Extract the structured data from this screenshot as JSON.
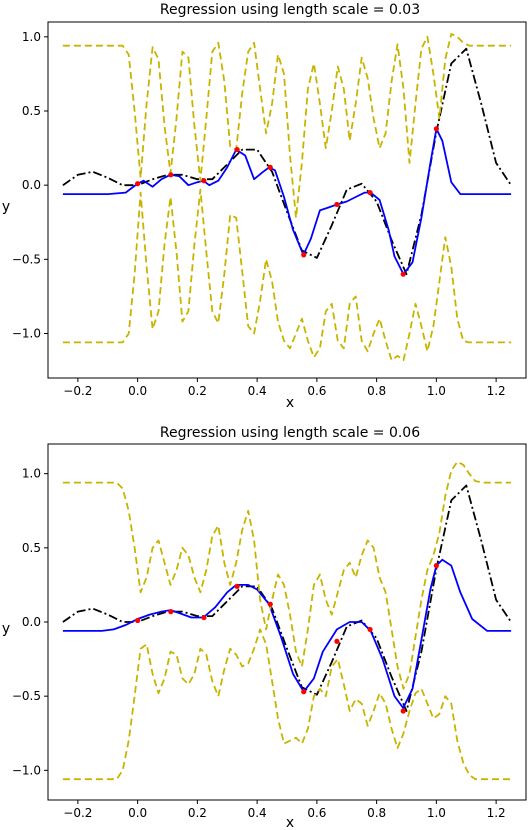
{
  "chart_data": [
    {
      "type": "line",
      "title": "Regression using length scale = 0.03",
      "xlabel": "x",
      "ylabel": "y",
      "xlim": [
        -0.3,
        1.3
      ],
      "ylim": [
        -1.3,
        1.1
      ],
      "xticks": [
        -0.2,
        0.0,
        0.2,
        0.4,
        0.6,
        0.8,
        1.0,
        1.2
      ],
      "xtick_labels": [
        "−0.2",
        "0.0",
        "0.2",
        "0.4",
        "0.6",
        "0.8",
        "1.0",
        "1.2"
      ],
      "yticks": [
        1.0,
        0.5,
        0.0,
        -0.5,
        -1.0
      ],
      "ytick_labels": [
        "1.0",
        "0.5",
        "0.0",
        "−0.5",
        "−1.0"
      ],
      "series": [
        {
          "style": "dashdot",
          "color": "#000000",
          "x": [
            -0.25,
            -0.2,
            -0.15,
            -0.1,
            -0.05,
            0.0,
            0.05,
            0.1,
            0.15,
            0.2,
            0.25,
            0.3,
            0.35,
            0.4,
            0.45,
            0.5,
            0.55,
            0.6,
            0.65,
            0.7,
            0.75,
            0.8,
            0.85,
            0.9,
            0.95,
            1.0,
            1.05,
            1.1,
            1.15,
            1.2,
            1.25
          ],
          "y": [
            0.0,
            0.07,
            0.09,
            0.05,
            0.0,
            0.0,
            0.04,
            0.07,
            0.07,
            0.04,
            0.04,
            0.14,
            0.24,
            0.24,
            0.09,
            -0.18,
            -0.44,
            -0.49,
            -0.27,
            -0.03,
            0.01,
            -0.11,
            -0.37,
            -0.6,
            -0.2,
            0.36,
            0.82,
            0.92,
            0.55,
            0.15,
            0.0
          ]
        },
        {
          "style": "solid",
          "color": "#0000ff",
          "x": [
            -0.25,
            -0.1,
            -0.04,
            -0.02,
            0.0,
            0.02,
            0.05,
            0.08,
            0.11,
            0.14,
            0.17,
            0.2,
            0.22,
            0.24,
            0.27,
            0.3,
            0.33,
            0.36,
            0.39,
            0.42,
            0.44,
            0.46,
            0.49,
            0.52,
            0.555,
            0.58,
            0.61,
            0.64,
            0.667,
            0.7,
            0.73,
            0.76,
            0.78,
            0.81,
            0.84,
            0.86,
            0.89,
            0.92,
            0.95,
            0.98,
            1.0,
            1.02,
            1.05,
            1.08,
            1.12,
            1.18,
            1.25
          ],
          "y": [
            -0.06,
            -0.06,
            -0.05,
            -0.02,
            0.01,
            0.03,
            -0.01,
            0.04,
            0.07,
            0.06,
            0.0,
            0.02,
            0.03,
            0.0,
            0.03,
            0.12,
            0.24,
            0.2,
            0.04,
            0.09,
            0.12,
            0.1,
            -0.08,
            -0.3,
            -0.47,
            -0.36,
            -0.17,
            -0.15,
            -0.13,
            -0.11,
            -0.08,
            -0.05,
            -0.05,
            -0.1,
            -0.3,
            -0.48,
            -0.6,
            -0.52,
            -0.22,
            0.15,
            0.38,
            0.3,
            0.02,
            -0.06,
            -0.06,
            -0.06,
            -0.06
          ]
        },
        {
          "style": "dashed",
          "color": "#c8b400",
          "x": [
            -0.25,
            -0.05,
            -0.03,
            -0.01,
            0.01,
            0.03,
            0.05,
            0.07,
            0.09,
            0.11,
            0.13,
            0.15,
            0.17,
            0.19,
            0.21,
            0.23,
            0.25,
            0.27,
            0.29,
            0.31,
            0.33,
            0.35,
            0.37,
            0.39,
            0.41,
            0.43,
            0.45,
            0.47,
            0.49,
            0.51,
            0.53,
            0.55,
            0.57,
            0.59,
            0.61,
            0.63,
            0.65,
            0.67,
            0.69,
            0.71,
            0.73,
            0.75,
            0.77,
            0.79,
            0.81,
            0.83,
            0.85,
            0.87,
            0.89,
            0.91,
            0.93,
            0.95,
            0.97,
            0.99,
            1.01,
            1.03,
            1.05,
            1.07,
            1.09,
            1.11,
            1.13,
            1.25
          ],
          "y": [
            0.94,
            0.94,
            0.88,
            0.5,
            0.05,
            0.55,
            0.93,
            0.85,
            0.4,
            0.08,
            0.45,
            0.9,
            0.86,
            0.4,
            0.03,
            0.45,
            0.9,
            0.96,
            0.7,
            0.26,
            0.24,
            0.62,
            0.9,
            0.96,
            0.65,
            0.35,
            0.55,
            0.88,
            0.75,
            0.2,
            -0.22,
            0.15,
            0.65,
            0.82,
            0.55,
            0.25,
            0.5,
            0.8,
            0.65,
            0.3,
            0.55,
            0.86,
            0.72,
            0.45,
            0.25,
            0.35,
            0.7,
            0.95,
            0.65,
            0.15,
            0.55,
            0.92,
            1.0,
            0.75,
            0.45,
            0.85,
            1.02,
            1.0,
            0.96,
            0.94,
            0.94,
            0.94
          ]
        },
        {
          "style": "dashed",
          "color": "#c8b400",
          "x": [
            -0.25,
            -0.05,
            -0.03,
            -0.01,
            0.01,
            0.03,
            0.05,
            0.07,
            0.09,
            0.11,
            0.13,
            0.15,
            0.17,
            0.19,
            0.21,
            0.23,
            0.25,
            0.27,
            0.29,
            0.31,
            0.33,
            0.35,
            0.37,
            0.39,
            0.41,
            0.43,
            0.45,
            0.47,
            0.49,
            0.51,
            0.53,
            0.55,
            0.57,
            0.59,
            0.61,
            0.63,
            0.65,
            0.67,
            0.69,
            0.71,
            0.73,
            0.75,
            0.77,
            0.79,
            0.81,
            0.83,
            0.85,
            0.87,
            0.89,
            0.91,
            0.93,
            0.95,
            0.97,
            0.99,
            1.01,
            1.03,
            1.05,
            1.07,
            1.09,
            1.11,
            1.13,
            1.25
          ],
          "y": [
            -1.06,
            -1.06,
            -1.0,
            -0.6,
            -0.05,
            -0.55,
            -0.97,
            -0.85,
            -0.4,
            -0.08,
            -0.45,
            -0.92,
            -0.85,
            -0.4,
            -0.03,
            -0.45,
            -0.85,
            -0.93,
            -0.6,
            -0.2,
            -0.22,
            -0.58,
            -0.95,
            -1.0,
            -0.78,
            -0.5,
            -0.65,
            -0.92,
            -1.05,
            -1.1,
            -1.0,
            -0.9,
            -1.05,
            -1.16,
            -1.1,
            -0.85,
            -0.8,
            -1.05,
            -1.1,
            -0.8,
            -0.75,
            -1.05,
            -1.12,
            -1.0,
            -0.9,
            -1.05,
            -1.18,
            -1.15,
            -1.18,
            -1.0,
            -0.8,
            -0.95,
            -1.12,
            -0.95,
            -0.65,
            -0.35,
            -0.55,
            -0.9,
            -1.05,
            -1.06,
            -1.06,
            -1.06
          ]
        }
      ],
      "points": {
        "color": "#ff0000",
        "x": [
          0.0,
          0.111,
          0.222,
          0.333,
          0.444,
          0.556,
          0.667,
          0.778,
          0.889,
          1.0
        ],
        "y": [
          0.01,
          0.07,
          0.03,
          0.24,
          0.12,
          -0.47,
          -0.13,
          -0.05,
          -0.6,
          0.38
        ]
      }
    },
    {
      "type": "line",
      "title": "Regression using length scale = 0.06",
      "xlabel": "x",
      "ylabel": "y",
      "xlim": [
        -0.3,
        1.3
      ],
      "ylim": [
        -1.2,
        1.2
      ],
      "xticks": [
        -0.2,
        0.0,
        0.2,
        0.4,
        0.6,
        0.8,
        1.0,
        1.2
      ],
      "xtick_labels": [
        "−0.2",
        "0.0",
        "0.2",
        "0.4",
        "0.6",
        "0.8",
        "1.0",
        "1.2"
      ],
      "yticks": [
        1.0,
        0.5,
        0.0,
        -0.5,
        -1.0
      ],
      "ytick_labels": [
        "1.0",
        "0.5",
        "0.0",
        "−0.5",
        "−1.0"
      ],
      "series": [
        {
          "style": "dashdot",
          "color": "#000000",
          "x": [
            -0.25,
            -0.2,
            -0.15,
            -0.1,
            -0.05,
            0.0,
            0.05,
            0.1,
            0.15,
            0.2,
            0.25,
            0.3,
            0.35,
            0.4,
            0.45,
            0.5,
            0.55,
            0.6,
            0.65,
            0.7,
            0.75,
            0.8,
            0.85,
            0.9,
            0.95,
            1.0,
            1.05,
            1.1,
            1.15,
            1.2,
            1.25
          ],
          "y": [
            0.0,
            0.07,
            0.09,
            0.05,
            0.0,
            0.0,
            0.04,
            0.07,
            0.07,
            0.04,
            0.04,
            0.14,
            0.24,
            0.24,
            0.09,
            -0.18,
            -0.44,
            -0.49,
            -0.27,
            -0.03,
            0.01,
            -0.11,
            -0.37,
            -0.6,
            -0.2,
            0.36,
            0.82,
            0.92,
            0.55,
            0.15,
            0.0
          ]
        },
        {
          "style": "solid",
          "color": "#0000ff",
          "x": [
            -0.25,
            -0.12,
            -0.08,
            -0.04,
            0.0,
            0.04,
            0.08,
            0.11,
            0.14,
            0.18,
            0.22,
            0.26,
            0.3,
            0.33,
            0.37,
            0.4,
            0.44,
            0.48,
            0.52,
            0.556,
            0.59,
            0.62,
            0.667,
            0.71,
            0.75,
            0.78,
            0.82,
            0.86,
            0.889,
            0.92,
            0.95,
            0.98,
            1.0,
            1.02,
            1.05,
            1.08,
            1.12,
            1.17,
            1.25
          ],
          "y": [
            -0.06,
            -0.06,
            -0.05,
            -0.02,
            0.02,
            0.05,
            0.07,
            0.08,
            0.06,
            0.03,
            0.03,
            0.1,
            0.2,
            0.25,
            0.25,
            0.22,
            0.12,
            -0.1,
            -0.35,
            -0.47,
            -0.38,
            -0.2,
            -0.05,
            0.0,
            0.0,
            -0.06,
            -0.25,
            -0.5,
            -0.58,
            -0.45,
            -0.12,
            0.22,
            0.38,
            0.42,
            0.38,
            0.2,
            0.02,
            -0.06,
            -0.06
          ]
        },
        {
          "style": "dashed",
          "color": "#c8b400",
          "x": [
            -0.25,
            -0.07,
            -0.05,
            -0.03,
            -0.01,
            0.01,
            0.03,
            0.05,
            0.07,
            0.09,
            0.11,
            0.13,
            0.15,
            0.17,
            0.19,
            0.21,
            0.23,
            0.25,
            0.27,
            0.29,
            0.31,
            0.33,
            0.35,
            0.37,
            0.39,
            0.41,
            0.43,
            0.45,
            0.47,
            0.49,
            0.51,
            0.53,
            0.55,
            0.57,
            0.59,
            0.61,
            0.63,
            0.65,
            0.67,
            0.69,
            0.71,
            0.73,
            0.75,
            0.77,
            0.79,
            0.81,
            0.83,
            0.85,
            0.87,
            0.89,
            0.91,
            0.93,
            0.95,
            0.97,
            0.99,
            1.01,
            1.03,
            1.05,
            1.07,
            1.09,
            1.11,
            1.13,
            1.16,
            1.25
          ],
          "y": [
            0.94,
            0.94,
            0.9,
            0.75,
            0.5,
            0.2,
            0.3,
            0.5,
            0.55,
            0.4,
            0.25,
            0.35,
            0.5,
            0.45,
            0.3,
            0.2,
            0.35,
            0.58,
            0.65,
            0.4,
            0.25,
            0.4,
            0.62,
            0.75,
            0.55,
            0.15,
            -0.05,
            0.15,
            0.32,
            0.25,
            0.05,
            -0.2,
            -0.3,
            -0.05,
            0.25,
            0.32,
            0.15,
            0.05,
            0.2,
            0.35,
            0.4,
            0.3,
            0.45,
            0.55,
            0.5,
            0.3,
            0.2,
            -0.05,
            -0.3,
            -0.45,
            -0.35,
            -0.1,
            0.15,
            0.35,
            0.45,
            0.6,
            0.85,
            1.02,
            1.08,
            1.06,
            1.0,
            0.95,
            0.94,
            0.94
          ]
        },
        {
          "style": "dashed",
          "color": "#c8b400",
          "x": [
            -0.25,
            -0.07,
            -0.05,
            -0.03,
            -0.01,
            0.01,
            0.03,
            0.05,
            0.07,
            0.09,
            0.11,
            0.13,
            0.15,
            0.17,
            0.19,
            0.21,
            0.23,
            0.25,
            0.27,
            0.29,
            0.31,
            0.33,
            0.35,
            0.37,
            0.39,
            0.41,
            0.43,
            0.45,
            0.47,
            0.49,
            0.51,
            0.53,
            0.55,
            0.57,
            0.59,
            0.61,
            0.63,
            0.65,
            0.67,
            0.69,
            0.71,
            0.73,
            0.75,
            0.77,
            0.79,
            0.81,
            0.83,
            0.85,
            0.87,
            0.89,
            0.91,
            0.93,
            0.95,
            0.97,
            0.99,
            1.01,
            1.03,
            1.05,
            1.07,
            1.09,
            1.11,
            1.13,
            1.16,
            1.25
          ],
          "y": [
            -1.06,
            -1.06,
            -1.0,
            -0.8,
            -0.5,
            -0.18,
            -0.15,
            -0.35,
            -0.48,
            -0.38,
            -0.2,
            -0.22,
            -0.38,
            -0.42,
            -0.35,
            -0.18,
            -0.22,
            -0.4,
            -0.5,
            -0.32,
            -0.18,
            -0.22,
            -0.3,
            -0.28,
            -0.18,
            -0.05,
            -0.15,
            -0.4,
            -0.65,
            -0.82,
            -0.8,
            -0.78,
            -0.82,
            -0.72,
            -0.5,
            -0.45,
            -0.5,
            -0.3,
            -0.25,
            -0.42,
            -0.6,
            -0.52,
            -0.55,
            -0.7,
            -0.6,
            -0.48,
            -0.55,
            -0.72,
            -0.85,
            -0.75,
            -0.6,
            -0.48,
            -0.45,
            -0.55,
            -0.65,
            -0.62,
            -0.5,
            -0.55,
            -0.8,
            -0.95,
            -1.03,
            -1.06,
            -1.06,
            -1.06
          ]
        }
      ],
      "points": {
        "color": "#ff0000",
        "x": [
          0.0,
          0.111,
          0.222,
          0.333,
          0.444,
          0.556,
          0.667,
          0.778,
          0.889,
          1.0
        ],
        "y": [
          0.01,
          0.07,
          0.03,
          0.24,
          0.12,
          -0.47,
          -0.13,
          -0.05,
          -0.6,
          0.38
        ]
      }
    }
  ]
}
